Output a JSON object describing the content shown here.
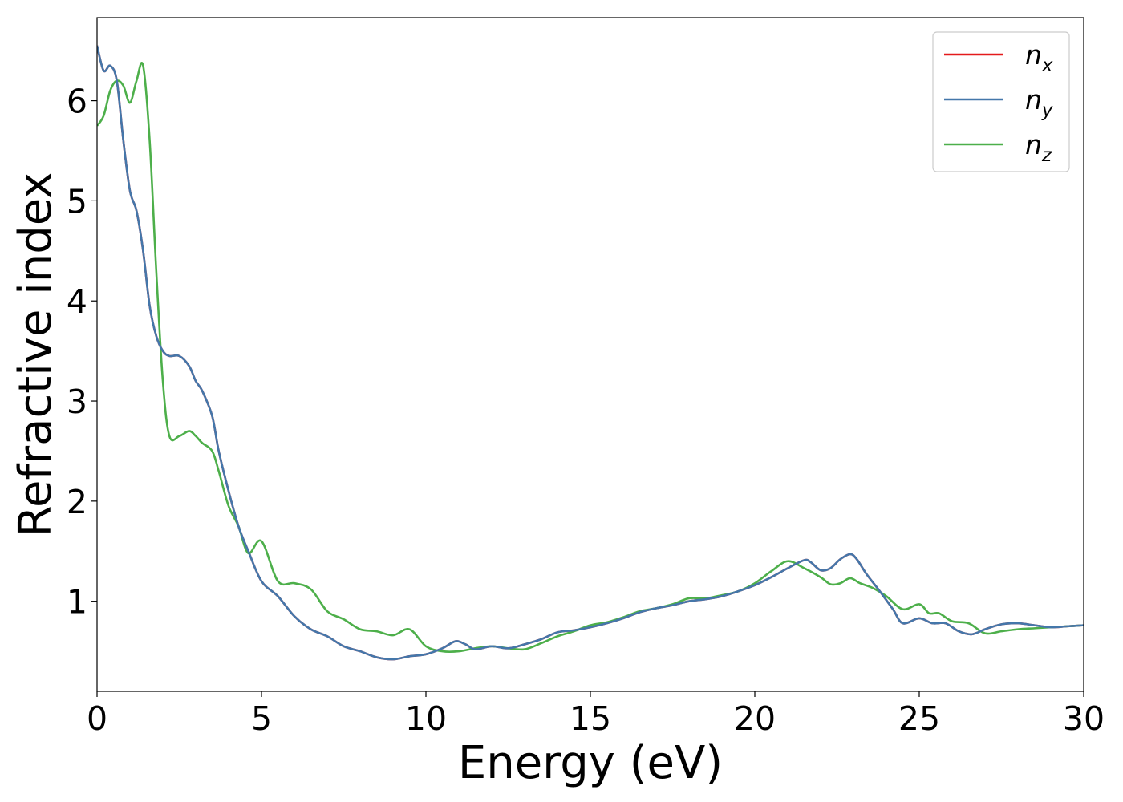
{
  "chart_data": {
    "type": "line",
    "xlabel": "Energy (eV)",
    "ylabel": "Refractive index",
    "xlim": [
      0,
      30
    ],
    "ylim": [
      0.1,
      6.83
    ],
    "xticks": [
      0,
      5,
      10,
      15,
      20,
      25,
      30
    ],
    "xtick_labels": [
      "0",
      "5",
      "10",
      "15",
      "20",
      "25",
      "30"
    ],
    "yticks": [
      1,
      2,
      3,
      4,
      5,
      6
    ],
    "ytick_labels": [
      "1",
      "2",
      "3",
      "4",
      "5",
      "6"
    ],
    "grid": false,
    "legend_position": "top-right",
    "series": [
      {
        "name": "n",
        "subscript": "x",
        "color": "#e41a1c",
        "x": [
          0,
          0.2,
          0.4,
          0.6,
          0.8,
          1.0,
          1.2,
          1.4,
          1.6,
          1.8,
          2.0,
          2.2,
          2.5,
          2.8,
          3.0,
          3.2,
          3.5,
          3.7,
          4.0,
          4.3,
          4.6,
          5.0,
          5.5,
          6.0,
          6.5,
          7.0,
          7.5,
          8.0,
          8.5,
          9.0,
          9.5,
          10.0,
          10.5,
          10.9,
          11.2,
          11.5,
          12.0,
          12.5,
          13.0,
          13.5,
          14.0,
          14.5,
          15.0,
          15.5,
          16.0,
          16.5,
          17.0,
          17.5,
          18.0,
          18.5,
          19.0,
          19.5,
          20.0,
          20.5,
          21.0,
          21.5,
          21.7,
          22.0,
          22.3,
          22.6,
          22.9,
          23.1,
          23.4,
          23.8,
          24.2,
          24.5,
          25.0,
          25.4,
          25.8,
          26.2,
          26.6,
          27.0,
          27.5,
          28.0,
          28.5,
          29.0,
          29.5,
          30.0
        ],
        "y": [
          6.55,
          6.3,
          6.35,
          6.2,
          5.6,
          5.1,
          4.9,
          4.5,
          3.95,
          3.65,
          3.5,
          3.45,
          3.45,
          3.35,
          3.2,
          3.1,
          2.85,
          2.5,
          2.1,
          1.75,
          1.5,
          1.2,
          1.05,
          0.85,
          0.72,
          0.65,
          0.55,
          0.5,
          0.44,
          0.42,
          0.45,
          0.47,
          0.53,
          0.6,
          0.57,
          0.52,
          0.55,
          0.53,
          0.57,
          0.62,
          0.69,
          0.71,
          0.74,
          0.78,
          0.83,
          0.89,
          0.93,
          0.96,
          1.0,
          1.02,
          1.05,
          1.1,
          1.16,
          1.24,
          1.33,
          1.41,
          1.39,
          1.31,
          1.33,
          1.42,
          1.47,
          1.42,
          1.27,
          1.1,
          0.92,
          0.78,
          0.83,
          0.78,
          0.78,
          0.7,
          0.67,
          0.72,
          0.77,
          0.78,
          0.76,
          0.74,
          0.75,
          0.76
        ]
      },
      {
        "name": "n",
        "subscript": "y",
        "color": "#4477aa",
        "x": [
          0,
          0.2,
          0.4,
          0.6,
          0.8,
          1.0,
          1.2,
          1.4,
          1.6,
          1.8,
          2.0,
          2.2,
          2.5,
          2.8,
          3.0,
          3.2,
          3.5,
          3.7,
          4.0,
          4.3,
          4.6,
          5.0,
          5.5,
          6.0,
          6.5,
          7.0,
          7.5,
          8.0,
          8.5,
          9.0,
          9.5,
          10.0,
          10.5,
          10.9,
          11.2,
          11.5,
          12.0,
          12.5,
          13.0,
          13.5,
          14.0,
          14.5,
          15.0,
          15.5,
          16.0,
          16.5,
          17.0,
          17.5,
          18.0,
          18.5,
          19.0,
          19.5,
          20.0,
          20.5,
          21.0,
          21.5,
          21.7,
          22.0,
          22.3,
          22.6,
          22.9,
          23.1,
          23.4,
          23.8,
          24.2,
          24.5,
          25.0,
          25.4,
          25.8,
          26.2,
          26.6,
          27.0,
          27.5,
          28.0,
          28.5,
          29.0,
          29.5,
          30.0
        ],
        "y": [
          6.55,
          6.3,
          6.35,
          6.2,
          5.6,
          5.1,
          4.9,
          4.5,
          3.95,
          3.65,
          3.5,
          3.45,
          3.45,
          3.35,
          3.2,
          3.1,
          2.85,
          2.5,
          2.1,
          1.75,
          1.5,
          1.2,
          1.05,
          0.85,
          0.72,
          0.65,
          0.55,
          0.5,
          0.44,
          0.42,
          0.45,
          0.47,
          0.53,
          0.6,
          0.57,
          0.52,
          0.55,
          0.53,
          0.57,
          0.62,
          0.69,
          0.71,
          0.74,
          0.78,
          0.83,
          0.89,
          0.93,
          0.96,
          1.0,
          1.02,
          1.05,
          1.1,
          1.16,
          1.24,
          1.33,
          1.41,
          1.39,
          1.31,
          1.33,
          1.42,
          1.47,
          1.42,
          1.27,
          1.1,
          0.92,
          0.78,
          0.83,
          0.78,
          0.78,
          0.7,
          0.67,
          0.72,
          0.77,
          0.78,
          0.76,
          0.74,
          0.75,
          0.76
        ]
      },
      {
        "name": "n",
        "subscript": "z",
        "color": "#4daf4a",
        "x": [
          0,
          0.2,
          0.4,
          0.6,
          0.8,
          1.0,
          1.2,
          1.4,
          1.6,
          1.8,
          2.0,
          2.2,
          2.5,
          2.8,
          3.0,
          3.2,
          3.5,
          3.7,
          4.0,
          4.3,
          4.6,
          5.0,
          5.5,
          6.0,
          6.5,
          7.0,
          7.5,
          8.0,
          8.5,
          9.0,
          9.5,
          10.0,
          10.5,
          11.0,
          11.5,
          12.0,
          12.5,
          13.0,
          13.5,
          14.0,
          14.5,
          15.0,
          15.5,
          16.0,
          16.5,
          17.0,
          17.5,
          18.0,
          18.5,
          19.0,
          19.5,
          20.0,
          20.5,
          21.0,
          21.5,
          22.0,
          22.3,
          22.6,
          22.9,
          23.2,
          23.6,
          24.0,
          24.5,
          25.0,
          25.3,
          25.6,
          26.0,
          26.5,
          27.0,
          27.5,
          28.0,
          28.5,
          29.0,
          29.5,
          30.0
        ],
        "y": [
          5.75,
          5.85,
          6.1,
          6.2,
          6.15,
          5.98,
          6.2,
          6.35,
          5.6,
          4.3,
          3.2,
          2.65,
          2.65,
          2.7,
          2.65,
          2.58,
          2.5,
          2.3,
          1.95,
          1.75,
          1.48,
          1.6,
          1.2,
          1.18,
          1.12,
          0.9,
          0.82,
          0.72,
          0.7,
          0.66,
          0.72,
          0.55,
          0.5,
          0.5,
          0.53,
          0.55,
          0.53,
          0.52,
          0.58,
          0.65,
          0.7,
          0.76,
          0.79,
          0.84,
          0.9,
          0.93,
          0.97,
          1.03,
          1.03,
          1.06,
          1.1,
          1.18,
          1.3,
          1.4,
          1.33,
          1.24,
          1.17,
          1.18,
          1.23,
          1.18,
          1.13,
          1.05,
          0.92,
          0.97,
          0.88,
          0.88,
          0.8,
          0.78,
          0.68,
          0.7,
          0.72,
          0.73,
          0.74,
          0.75,
          0.76
        ]
      }
    ]
  }
}
